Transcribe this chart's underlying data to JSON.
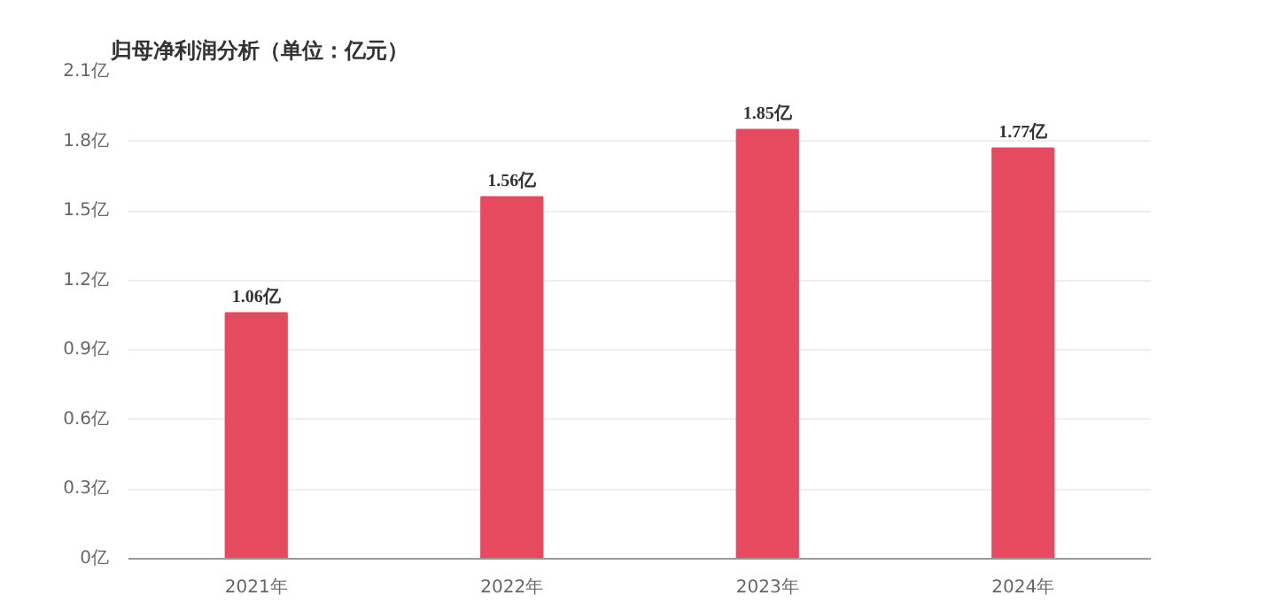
{
  "chart_data": {
    "type": "bar",
    "title": "归母净利润分析（单位：亿元）",
    "categories": [
      "2021年",
      "2022年",
      "2023年",
      "2024年"
    ],
    "values": [
      1.06,
      1.56,
      1.85,
      1.77
    ],
    "color": "#e64a5e",
    "value_labels": [
      "1.06亿",
      "1.56亿",
      "1.85亿",
      "1.77亿"
    ],
    "ylim": [
      0,
      2.1
    ],
    "yticks": [
      {
        "value": 0,
        "label": "0亿"
      },
      {
        "value": 0.3,
        "label": "0.3亿"
      },
      {
        "value": 0.6,
        "label": "0.6亿"
      },
      {
        "value": 0.9,
        "label": "0.9亿"
      },
      {
        "value": 1.2,
        "label": "1.2亿"
      },
      {
        "value": 1.5,
        "label": "1.5亿"
      },
      {
        "value": 1.8,
        "label": "1.8亿"
      },
      {
        "value": 2.1,
        "label": "2.1亿"
      }
    ],
    "grid": "y"
  }
}
